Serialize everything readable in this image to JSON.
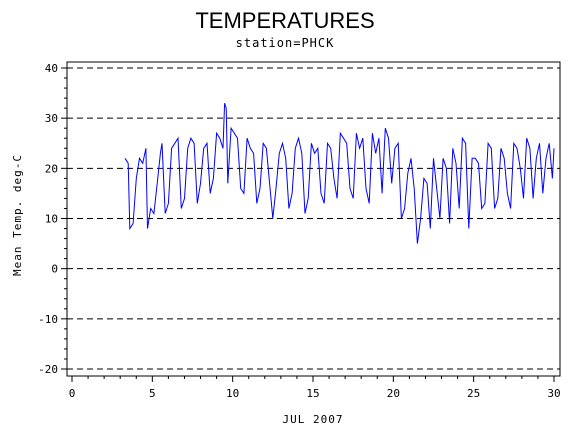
{
  "chart_data": {
    "type": "line",
    "title": "TEMPERATURES",
    "subtitle": "station=PHCK",
    "xlabel": "JUL 2007",
    "ylabel": "Mean Temp. deg-C",
    "xlim": [
      0,
      30
    ],
    "ylim": [
      -20,
      40
    ],
    "x_ticks": [
      0,
      5,
      10,
      15,
      20,
      25,
      30
    ],
    "y_ticks": [
      -20,
      -10,
      0,
      10,
      20,
      30,
      40
    ],
    "gridlines": "dashed horizontal at major y ticks",
    "line_color": "#0000ff",
    "series": [
      {
        "values": [
          [
            3.3,
            22
          ],
          [
            3.5,
            21
          ],
          [
            3.6,
            8
          ],
          [
            3.8,
            9
          ],
          [
            4.0,
            18
          ],
          [
            4.2,
            22
          ],
          [
            4.4,
            21
          ],
          [
            4.6,
            24
          ],
          [
            4.7,
            8
          ],
          [
            4.9,
            12
          ],
          [
            5.1,
            11
          ],
          [
            5.3,
            17
          ],
          [
            5.5,
            23
          ],
          [
            5.6,
            25
          ],
          [
            5.8,
            11
          ],
          [
            6.0,
            13
          ],
          [
            6.2,
            24
          ],
          [
            6.4,
            25
          ],
          [
            6.6,
            26
          ],
          [
            6.8,
            12
          ],
          [
            7.0,
            14
          ],
          [
            7.2,
            24
          ],
          [
            7.4,
            26
          ],
          [
            7.6,
            25
          ],
          [
            7.8,
            13
          ],
          [
            8.0,
            17
          ],
          [
            8.2,
            24
          ],
          [
            8.4,
            25
          ],
          [
            8.6,
            15
          ],
          [
            8.8,
            18
          ],
          [
            9.0,
            27
          ],
          [
            9.2,
            26
          ],
          [
            9.4,
            24
          ],
          [
            9.5,
            33
          ],
          [
            9.6,
            32
          ],
          [
            9.7,
            17
          ],
          [
            9.9,
            28
          ],
          [
            10.1,
            27
          ],
          [
            10.3,
            26
          ],
          [
            10.5,
            16
          ],
          [
            10.7,
            15
          ],
          [
            10.9,
            26
          ],
          [
            11.1,
            24
          ],
          [
            11.3,
            23
          ],
          [
            11.5,
            13
          ],
          [
            11.7,
            16
          ],
          [
            11.9,
            25
          ],
          [
            12.1,
            24
          ],
          [
            12.3,
            17
          ],
          [
            12.5,
            10
          ],
          [
            12.7,
            16
          ],
          [
            12.9,
            23
          ],
          [
            13.1,
            25
          ],
          [
            13.3,
            22
          ],
          [
            13.5,
            12
          ],
          [
            13.7,
            15
          ],
          [
            13.9,
            24
          ],
          [
            14.1,
            26
          ],
          [
            14.3,
            23
          ],
          [
            14.5,
            11
          ],
          [
            14.7,
            14
          ],
          [
            14.9,
            25
          ],
          [
            15.1,
            23
          ],
          [
            15.3,
            24
          ],
          [
            15.5,
            15
          ],
          [
            15.7,
            13
          ],
          [
            15.9,
            25
          ],
          [
            16.1,
            24
          ],
          [
            16.3,
            18
          ],
          [
            16.5,
            14
          ],
          [
            16.7,
            27
          ],
          [
            16.9,
            26
          ],
          [
            17.1,
            25
          ],
          [
            17.3,
            16
          ],
          [
            17.5,
            14
          ],
          [
            17.7,
            27
          ],
          [
            17.9,
            24
          ],
          [
            18.1,
            26
          ],
          [
            18.3,
            16
          ],
          [
            18.5,
            13
          ],
          [
            18.7,
            27
          ],
          [
            18.9,
            23
          ],
          [
            19.1,
            26
          ],
          [
            19.3,
            15
          ],
          [
            19.5,
            28
          ],
          [
            19.7,
            26
          ],
          [
            19.9,
            17
          ],
          [
            20.1,
            24
          ],
          [
            20.3,
            25
          ],
          [
            20.5,
            10
          ],
          [
            20.7,
            12
          ],
          [
            20.9,
            19
          ],
          [
            21.1,
            22
          ],
          [
            21.3,
            16
          ],
          [
            21.5,
            5
          ],
          [
            21.7,
            10
          ],
          [
            21.9,
            18
          ],
          [
            22.1,
            17
          ],
          [
            22.3,
            8
          ],
          [
            22.5,
            22
          ],
          [
            22.7,
            16
          ],
          [
            22.9,
            10
          ],
          [
            23.1,
            22
          ],
          [
            23.3,
            20
          ],
          [
            23.5,
            9
          ],
          [
            23.7,
            24
          ],
          [
            23.9,
            21
          ],
          [
            24.1,
            12
          ],
          [
            24.3,
            26
          ],
          [
            24.5,
            25
          ],
          [
            24.7,
            8
          ],
          [
            24.9,
            22
          ],
          [
            25.1,
            22
          ],
          [
            25.3,
            21
          ],
          [
            25.5,
            12
          ],
          [
            25.7,
            13
          ],
          [
            25.9,
            25
          ],
          [
            26.1,
            24
          ],
          [
            26.3,
            12
          ],
          [
            26.5,
            14
          ],
          [
            26.7,
            24
          ],
          [
            26.9,
            22
          ],
          [
            27.1,
            15
          ],
          [
            27.3,
            12
          ],
          [
            27.5,
            25
          ],
          [
            27.7,
            24
          ],
          [
            27.9,
            20
          ],
          [
            28.1,
            14
          ],
          [
            28.3,
            26
          ],
          [
            28.5,
            24
          ],
          [
            28.7,
            14
          ],
          [
            28.9,
            22
          ],
          [
            29.1,
            25
          ],
          [
            29.3,
            15
          ],
          [
            29.5,
            22
          ],
          [
            29.7,
            25
          ],
          [
            29.9,
            18
          ],
          [
            30.0,
            24
          ]
        ]
      }
    ]
  }
}
